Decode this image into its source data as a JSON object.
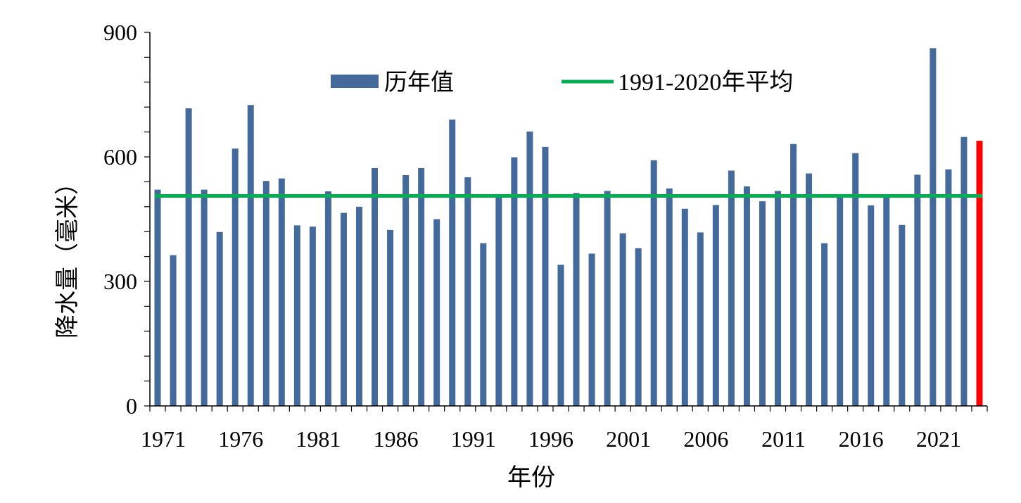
{
  "chart_data": {
    "type": "bar",
    "xlabel": "年份",
    "ylabel": "降水量（毫米）",
    "ylim": [
      0,
      900
    ],
    "yticks": [
      0,
      300,
      600,
      900
    ],
    "xtick_labels": [
      "1971",
      "1976",
      "1981",
      "1986",
      "1991",
      "1996",
      "2001",
      "2006",
      "2011",
      "2016",
      "2021"
    ],
    "grid": false,
    "legend_position": "top",
    "categories": [
      1971,
      1972,
      1973,
      1974,
      1975,
      1976,
      1977,
      1978,
      1979,
      1980,
      1981,
      1982,
      1983,
      1984,
      1985,
      1986,
      1987,
      1988,
      1989,
      1990,
      1991,
      1992,
      1993,
      1994,
      1995,
      1996,
      1997,
      1998,
      1999,
      2000,
      2001,
      2002,
      2003,
      2004,
      2005,
      2006,
      2007,
      2008,
      2009,
      2010,
      2011,
      2012,
      2013,
      2014,
      2015,
      2016,
      2017,
      2018,
      2019,
      2020,
      2021,
      2022,
      2023,
      2024
    ],
    "series": [
      {
        "name": "历年值",
        "color": "#44699b",
        "values": [
          521,
          363,
          717,
          521,
          419,
          620,
          725,
          542,
          548,
          435,
          432,
          517,
          465,
          480,
          573,
          424,
          556,
          573,
          450,
          690,
          551,
          392,
          508,
          599,
          661,
          624,
          340,
          513,
          367,
          518,
          416,
          380,
          592,
          524,
          475,
          418,
          484,
          567,
          529,
          493,
          518,
          631,
          560,
          392,
          507,
          609,
          483,
          505,
          436,
          557,
          862,
          570,
          648,
          639
        ]
      },
      {
        "name": "1991-2020年平均",
        "color": "#00b050",
        "type": "line",
        "value": 506
      }
    ],
    "highlight": {
      "category": 2024,
      "color": "#ff0000"
    }
  }
}
